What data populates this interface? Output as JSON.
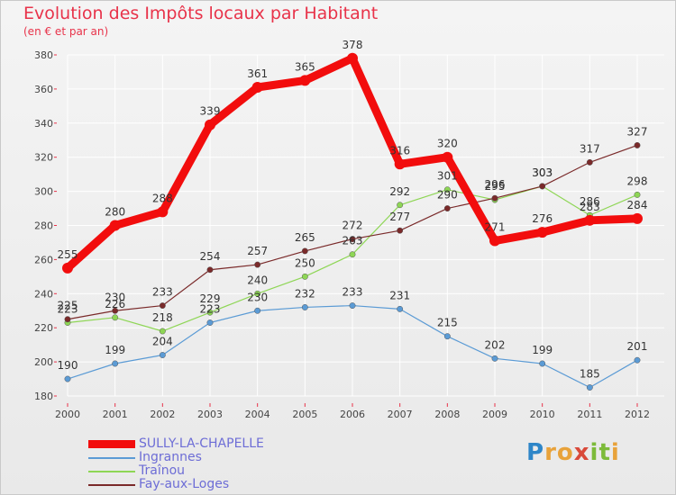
{
  "header": {
    "title": "Evolution des Impôts locaux par Habitant",
    "subtitle": "(en € et par an)"
  },
  "logo": {
    "letters": [
      {
        "ch": "P",
        "color": "#2e86c8"
      },
      {
        "ch": "r",
        "color": "#e8a23a"
      },
      {
        "ch": "o",
        "color": "#e8a23a"
      },
      {
        "ch": "x",
        "color": "#d94a3a"
      },
      {
        "ch": "i",
        "color": "#7dbb3a"
      },
      {
        "ch": "t",
        "color": "#7dbb3a"
      },
      {
        "ch": "i",
        "color": "#e8a23a"
      }
    ]
  },
  "chart_data": {
    "type": "line",
    "title": "Evolution des Impôts locaux par Habitant",
    "subtitle": "(en € et par an)",
    "xlabel": "",
    "ylabel": "",
    "grid": true,
    "legend_position": "bottom-left",
    "x": [
      "2000",
      "2001",
      "2002",
      "2003",
      "2004",
      "2005",
      "2006",
      "2007",
      "2008",
      "2009",
      "2010",
      "2011",
      "2012"
    ],
    "ylim": [
      180,
      380
    ],
    "yticks": [
      180,
      200,
      220,
      240,
      260,
      280,
      300,
      320,
      340,
      360,
      380
    ],
    "series": [
      {
        "name": "SULLY-LA-CHAPELLE",
        "color": "#f20d0d",
        "values": [
          255,
          280,
          288,
          339,
          361,
          365,
          378,
          316,
          320,
          271,
          276,
          283,
          284
        ],
        "labels": [
          "255",
          "280",
          "288",
          "339",
          "361",
          "365",
          "378",
          "316",
          "320",
          "271",
          "276",
          "283",
          "284"
        ]
      },
      {
        "name": "Ingrannes",
        "color": "#5b9bd5",
        "values": [
          190,
          199,
          204,
          223,
          230,
          232,
          233,
          231,
          215,
          202,
          199,
          185,
          201
        ],
        "labels": [
          "190",
          "199",
          "204",
          "223",
          "230",
          "232",
          "233",
          "231",
          "215",
          "202",
          "199",
          "185",
          "201"
        ]
      },
      {
        "name": "Traînou",
        "color": "#8ed655",
        "values": [
          223,
          226,
          218,
          229,
          240,
          250,
          263,
          292,
          301,
          295,
          303,
          286,
          298
        ],
        "labels": [
          "223",
          "226",
          "218",
          "229",
          "240",
          "250",
          "263",
          "292",
          "301",
          "295",
          "303",
          "286",
          "298"
        ]
      },
      {
        "name": "Fay-aux-Loges",
        "color": "#7a2a2a",
        "values": [
          225,
          230,
          233,
          254,
          257,
          265,
          272,
          277,
          290,
          296,
          303,
          317,
          327
        ],
        "labels": [
          "225",
          "230",
          "233",
          "254",
          "257",
          "265",
          "272",
          "277",
          "290",
          "296",
          "303",
          "317",
          "327"
        ]
      }
    ]
  }
}
